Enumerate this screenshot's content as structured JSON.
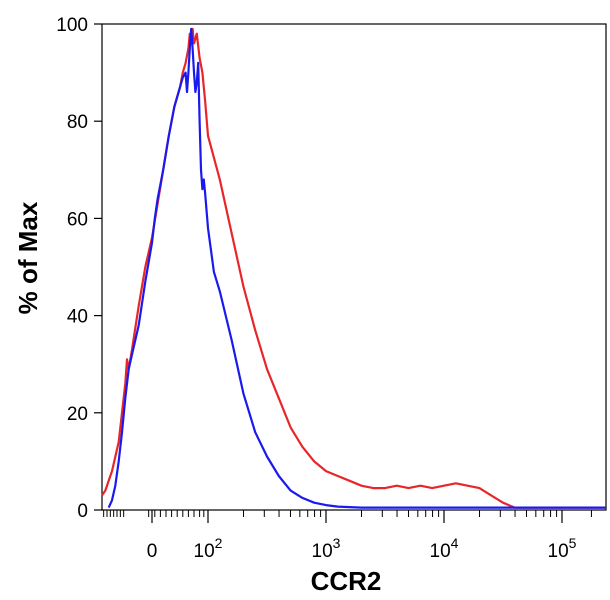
{
  "chart_data": {
    "type": "line",
    "title": "",
    "xlabel": "CCR2",
    "ylabel": "% of Max",
    "x_scale": "biexponential (log decades)",
    "xlim": [
      -1.5,
      5.45
    ],
    "ylim": [
      0,
      100
    ],
    "y_ticks": [
      0,
      20,
      40,
      60,
      80,
      100
    ],
    "x_ticks": [
      {
        "base": "0",
        "exp": "",
        "value": 0
      },
      {
        "base": "10",
        "exp": "2",
        "value": 2
      },
      {
        "base": "10",
        "exp": "3",
        "value": 3
      },
      {
        "base": "10",
        "exp": "4",
        "value": 4
      },
      {
        "base": "10",
        "exp": "5",
        "value": 5
      }
    ],
    "series": [
      {
        "name": "red-histogram",
        "color": "#e8262a",
        "points": [
          [
            -1.5,
            3
          ],
          [
            -1.4,
            4
          ],
          [
            -1.2,
            8
          ],
          [
            -1.0,
            14
          ],
          [
            -0.9,
            20
          ],
          [
            -0.8,
            26
          ],
          [
            -0.75,
            31
          ],
          [
            -0.7,
            29
          ],
          [
            -0.6,
            33
          ],
          [
            -0.4,
            42
          ],
          [
            -0.2,
            50
          ],
          [
            0.0,
            56
          ],
          [
            0.2,
            63
          ],
          [
            0.4,
            70
          ],
          [
            0.6,
            77
          ],
          [
            0.8,
            83
          ],
          [
            1.0,
            87
          ],
          [
            1.1,
            90
          ],
          [
            1.2,
            92
          ],
          [
            1.3,
            95
          ],
          [
            1.35,
            98
          ],
          [
            1.4,
            96
          ],
          [
            1.45,
            99
          ],
          [
            1.5,
            96
          ],
          [
            1.55,
            97
          ],
          [
            1.6,
            98
          ],
          [
            1.7,
            93
          ],
          [
            1.8,
            90
          ],
          [
            1.9,
            84
          ],
          [
            2.0,
            77
          ],
          [
            2.1,
            68
          ],
          [
            2.2,
            57
          ],
          [
            2.3,
            46
          ],
          [
            2.4,
            37
          ],
          [
            2.5,
            29
          ],
          [
            2.6,
            23
          ],
          [
            2.7,
            17
          ],
          [
            2.8,
            13
          ],
          [
            2.9,
            10
          ],
          [
            3.0,
            8
          ],
          [
            3.1,
            7
          ],
          [
            3.2,
            6
          ],
          [
            3.3,
            5
          ],
          [
            3.4,
            4.5
          ],
          [
            3.5,
            4.5
          ],
          [
            3.6,
            5
          ],
          [
            3.7,
            4.5
          ],
          [
            3.8,
            5
          ],
          [
            3.9,
            4.5
          ],
          [
            4.0,
            5
          ],
          [
            4.1,
            5.5
          ],
          [
            4.2,
            5
          ],
          [
            4.3,
            4.5
          ],
          [
            4.4,
            3
          ],
          [
            4.5,
            1.5
          ],
          [
            4.6,
            0.5
          ],
          [
            4.8,
            0.5
          ],
          [
            5.0,
            0.5
          ],
          [
            5.2,
            0.5
          ],
          [
            5.45,
            0.5
          ]
        ]
      },
      {
        "name": "blue-histogram",
        "color": "#1a1aee",
        "points": [
          [
            -1.3,
            0.5
          ],
          [
            -1.2,
            2
          ],
          [
            -1.1,
            5
          ],
          [
            -1.0,
            10
          ],
          [
            -0.9,
            16
          ],
          [
            -0.8,
            23
          ],
          [
            -0.7,
            29
          ],
          [
            -0.6,
            32
          ],
          [
            -0.4,
            38
          ],
          [
            -0.2,
            47
          ],
          [
            0.0,
            55
          ],
          [
            0.1,
            60
          ],
          [
            0.2,
            64
          ],
          [
            0.3,
            67
          ],
          [
            0.4,
            70
          ],
          [
            0.6,
            77
          ],
          [
            0.8,
            83
          ],
          [
            1.0,
            87
          ],
          [
            1.1,
            89
          ],
          [
            1.2,
            90
          ],
          [
            1.25,
            86
          ],
          [
            1.3,
            90
          ],
          [
            1.35,
            95
          ],
          [
            1.4,
            99
          ],
          [
            1.45,
            95
          ],
          [
            1.5,
            90
          ],
          [
            1.55,
            86
          ],
          [
            1.6,
            88
          ],
          [
            1.65,
            92
          ],
          [
            1.7,
            80
          ],
          [
            1.75,
            70
          ],
          [
            1.8,
            66
          ],
          [
            1.85,
            68
          ],
          [
            1.9,
            65
          ],
          [
            2.0,
            58
          ],
          [
            2.05,
            49
          ],
          [
            2.1,
            45
          ],
          [
            2.2,
            35
          ],
          [
            2.3,
            24
          ],
          [
            2.4,
            16
          ],
          [
            2.5,
            11
          ],
          [
            2.6,
            7
          ],
          [
            2.7,
            4
          ],
          [
            2.8,
            2.5
          ],
          [
            2.9,
            1.5
          ],
          [
            3.0,
            1
          ],
          [
            3.1,
            0.7
          ],
          [
            3.3,
            0.5
          ],
          [
            3.6,
            0.5
          ],
          [
            4.0,
            0.5
          ],
          [
            4.5,
            0.5
          ],
          [
            5.0,
            0.5
          ],
          [
            5.45,
            0.5
          ]
        ]
      }
    ]
  }
}
